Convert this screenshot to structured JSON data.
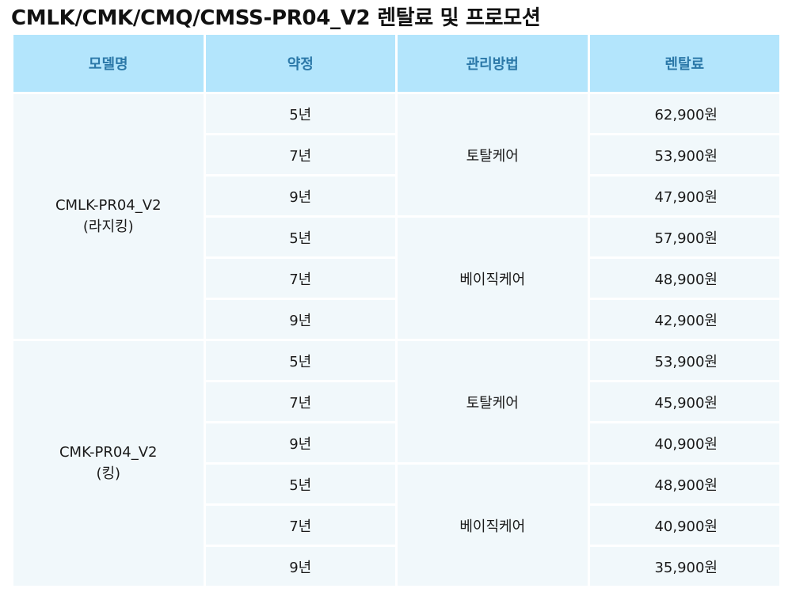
{
  "title": "CMLK/CMK/CMQ/CMSS-PR04_V2 렌탈료 및 프로모션",
  "headers": [
    "모델명",
    "약정",
    "관리방법",
    "렌탈료"
  ],
  "models": [
    {
      "name_line1": "CMLK-PR04_V2",
      "name_line2": "(라지킹)",
      "plans": [
        {
          "method": "토탈케어",
          "rows": [
            {
              "term": "5년",
              "price": "62,900원"
            },
            {
              "term": "7년",
              "price": "53,900원"
            },
            {
              "term": "9년",
              "price": "47,900원"
            }
          ]
        },
        {
          "method": "베이직케어",
          "rows": [
            {
              "term": "5년",
              "price": "57,900원"
            },
            {
              "term": "7년",
              "price": "48,900원"
            },
            {
              "term": "9년",
              "price": "42,900원"
            }
          ]
        }
      ]
    },
    {
      "name_line1": "CMK-PR04_V2",
      "name_line2": "(킹)",
      "plans": [
        {
          "method": "토탈케어",
          "rows": [
            {
              "term": "5년",
              "price": "53,900원"
            },
            {
              "term": "7년",
              "price": "45,900원"
            },
            {
              "term": "9년",
              "price": "40,900원"
            }
          ]
        },
        {
          "method": "베이직케어",
          "rows": [
            {
              "term": "5년",
              "price": "48,900원"
            },
            {
              "term": "7년",
              "price": "40,900원"
            },
            {
              "term": "9년",
              "price": "35,900원"
            }
          ]
        }
      ]
    }
  ]
}
